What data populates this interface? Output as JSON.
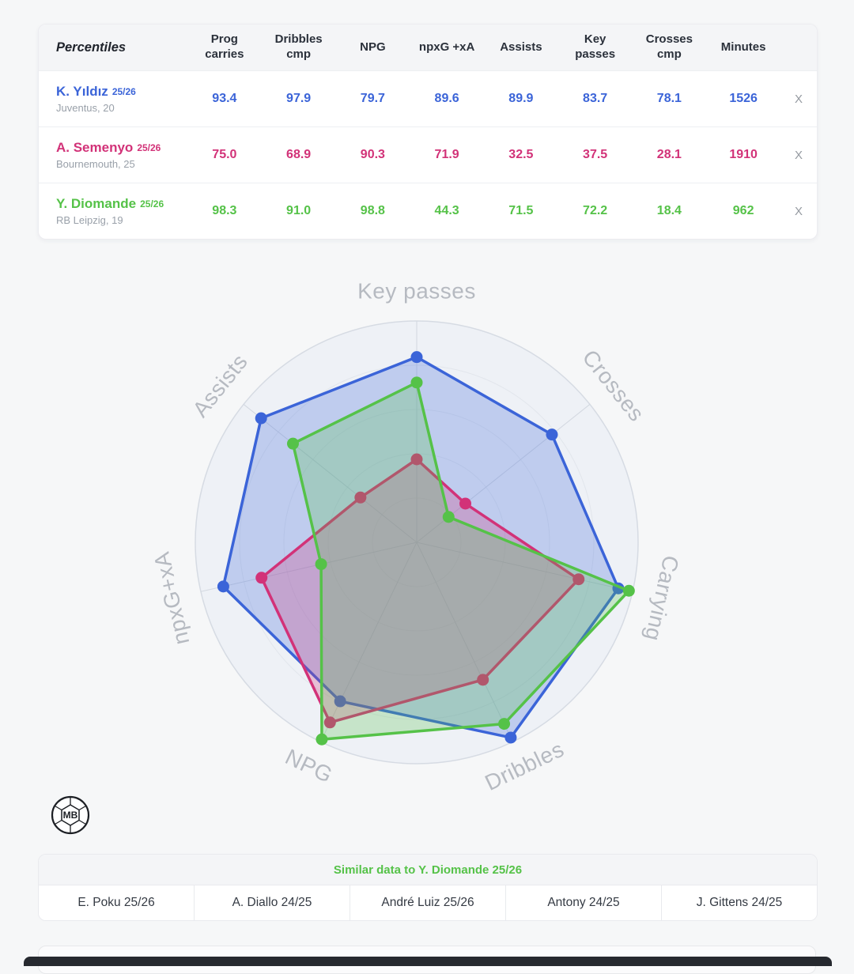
{
  "theme": {
    "accent_blue": "#3b64d8",
    "accent_pink": "#d23278",
    "accent_green": "#55c248",
    "page_bg": "#f6f7f8"
  },
  "table": {
    "title": "Percentiles",
    "columns": [
      "Prog carries",
      "Dribbles cmp",
      "NPG",
      "npxG +xA",
      "Assists",
      "Key passes",
      "Crosses cmp",
      "Minutes"
    ],
    "players": [
      {
        "name": "K. Yıldız",
        "season": "25/26",
        "meta": "Juventus, 20",
        "color": "#3b64d8",
        "values": [
          "93.4",
          "97.9",
          "79.7",
          "89.6",
          "89.9",
          "83.7",
          "78.1",
          "1526"
        ],
        "close": "X"
      },
      {
        "name": "A. Semenyo",
        "season": "25/26",
        "meta": "Bournemouth, 25",
        "color": "#d23278",
        "values": [
          "75.0",
          "68.9",
          "90.3",
          "71.9",
          "32.5",
          "37.5",
          "28.1",
          "1910"
        ],
        "close": "X"
      },
      {
        "name": "Y. Diomande",
        "season": "25/26",
        "meta": "RB Leipzig, 19",
        "color": "#55c248",
        "values": [
          "98.3",
          "91.0",
          "98.8",
          "44.3",
          "71.5",
          "72.2",
          "18.4",
          "962"
        ],
        "close": "X"
      }
    ]
  },
  "chart_data": {
    "type": "radar",
    "axes": [
      "Key passes",
      "Crosses",
      "Carrying",
      "Dribbles",
      "NPG",
      "npxG+xA",
      "Assists"
    ],
    "range": [
      0,
      100
    ],
    "grid": true,
    "series": [
      {
        "name": "K. Yıldız 25/26",
        "color": "#3b64d8",
        "values": [
          83.7,
          78.1,
          93.4,
          97.9,
          79.7,
          89.6,
          89.9
        ]
      },
      {
        "name": "A. Semenyo 25/26",
        "color": "#d23278",
        "values": [
          37.5,
          28.1,
          75.0,
          68.9,
          90.3,
          71.9,
          32.5
        ]
      },
      {
        "name": "Y. Diomande 25/26",
        "color": "#55c248",
        "values": [
          72.2,
          18.4,
          98.3,
          91.0,
          98.8,
          44.3,
          71.5
        ]
      }
    ]
  },
  "logo": {
    "text": "MB"
  },
  "similar": {
    "title": "Similar data to Y. Diomande 25/26",
    "items": [
      "E. Poku 25/26",
      "A. Diallo 24/25",
      "André Luiz 25/26",
      "Antony 24/25",
      "J. Gittens 24/25"
    ]
  }
}
